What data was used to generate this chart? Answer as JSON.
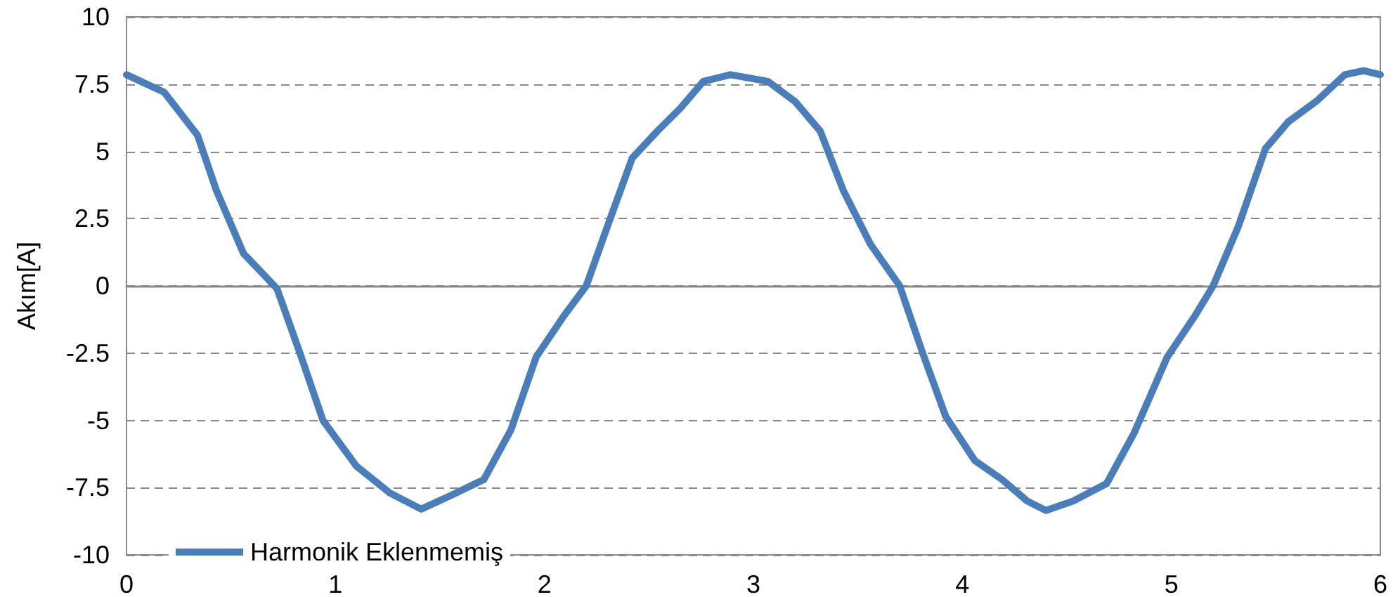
{
  "chart_data": {
    "type": "line",
    "ylabel": "Akım[A]",
    "xlim": [
      0,
      6
    ],
    "xticks": [
      0,
      1,
      2,
      3,
      4,
      5,
      6
    ],
    "ylim": [
      -10,
      10
    ],
    "yticks": [
      -10,
      -7.5,
      -5,
      -2.5,
      0,
      2.5,
      5,
      7.5,
      10
    ],
    "grid": "y",
    "legend": "bottom left",
    "marker": "none",
    "line_style": "solid",
    "series": [
      {
        "name": "Harmonik Eklenmemiş",
        "color": "#4a7ebb",
        "x": [
          0,
          0.18,
          0.34,
          0.43,
          0.56,
          0.72,
          0.83,
          0.94,
          1.1,
          1.26,
          1.41,
          1.55,
          1.71,
          1.84,
          1.96,
          2.09,
          2.2,
          2.31,
          2.42,
          2.54,
          2.65,
          2.76,
          2.89,
          3.07,
          3.2,
          3.32,
          3.43,
          3.56,
          3.7,
          3.81,
          3.92,
          4.06,
          4.19,
          4.31,
          4.4,
          4.53,
          4.69,
          4.82,
          4.98,
          5.11,
          5.2,
          5.32,
          5.45,
          5.56,
          5.7,
          5.83,
          5.92,
          6
        ],
        "values": [
          7.85,
          7.2,
          5.6,
          3.55,
          1.2,
          -0.1,
          -2.5,
          -5,
          -6.7,
          -7.7,
          -8.3,
          -7.8,
          -7.2,
          -5.35,
          -2.65,
          -1.15,
          0,
          2.4,
          4.75,
          5.75,
          6.6,
          7.6,
          7.85,
          7.6,
          6.85,
          5.75,
          3.55,
          1.55,
          0,
          -2.5,
          -4.85,
          -6.5,
          -7.2,
          -8,
          -8.35,
          -8,
          -7.35,
          -5.5,
          -2.65,
          -1.15,
          0,
          2.2,
          5.1,
          6.1,
          6.9,
          7.85,
          8,
          7.85
        ]
      }
    ]
  }
}
